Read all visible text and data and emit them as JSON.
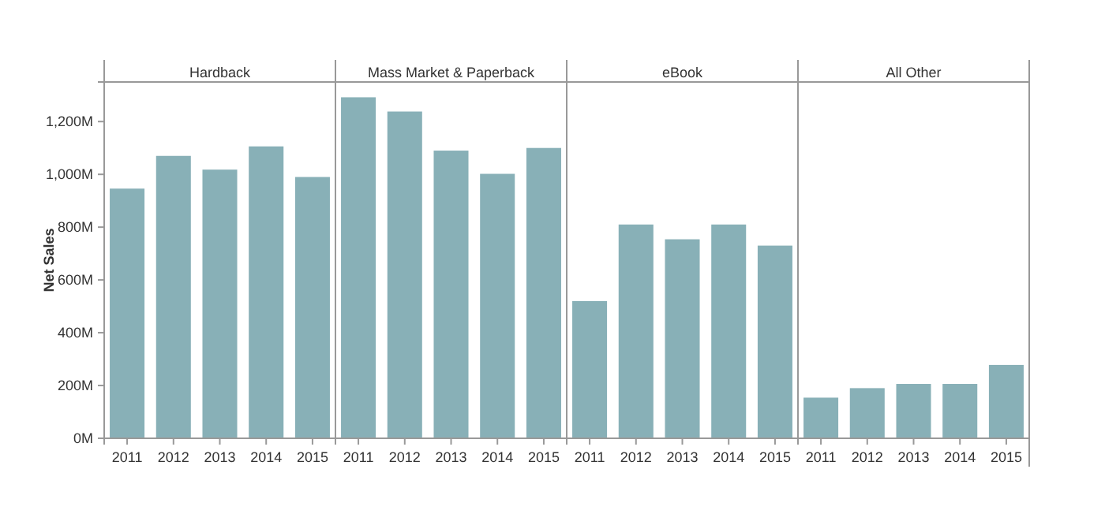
{
  "chart_data": [
    {
      "type": "bar",
      "title": "Hardback",
      "ylabel": "Net Sales",
      "categories": [
        "2011",
        "2012",
        "2013",
        "2014",
        "2015"
      ],
      "values": [
        946,
        1070,
        1018,
        1106,
        990
      ],
      "color": "#88b0b7",
      "ylim": [
        0,
        1350
      ],
      "yticks": [
        {
          "value": 0,
          "label": "0M"
        },
        {
          "value": 200,
          "label": "200M"
        },
        {
          "value": 400,
          "label": "400M"
        },
        {
          "value": 600,
          "label": "600M"
        },
        {
          "value": 800,
          "label": "800M"
        },
        {
          "value": 1000,
          "label": "1,000M"
        },
        {
          "value": 1200,
          "label": "1,200M"
        }
      ]
    },
    {
      "type": "bar",
      "title": "Mass Market & Paperback",
      "categories": [
        "2011",
        "2012",
        "2013",
        "2014",
        "2015"
      ],
      "values": [
        1292,
        1238,
        1090,
        1002,
        1100
      ],
      "color": "#88b0b7",
      "ylim": [
        0,
        1350
      ],
      "tick_labels": "x"
    },
    {
      "type": "bar",
      "title": "eBook",
      "categories": [
        "2011",
        "2012",
        "2013",
        "2014",
        "2015"
      ],
      "values": [
        520,
        810,
        754,
        810,
        730
      ],
      "color": "#88b0b7",
      "ylim": [
        0,
        1350
      ],
      "tick_labels": "x"
    },
    {
      "type": "bar",
      "title": "All Other",
      "categories": [
        "2011",
        "2012",
        "2013",
        "2014",
        "2015"
      ],
      "values": [
        154,
        190,
        206,
        206,
        278
      ],
      "color": "#88b0b7",
      "ylim": [
        0,
        1350
      ],
      "tick_labels": "x"
    }
  ]
}
